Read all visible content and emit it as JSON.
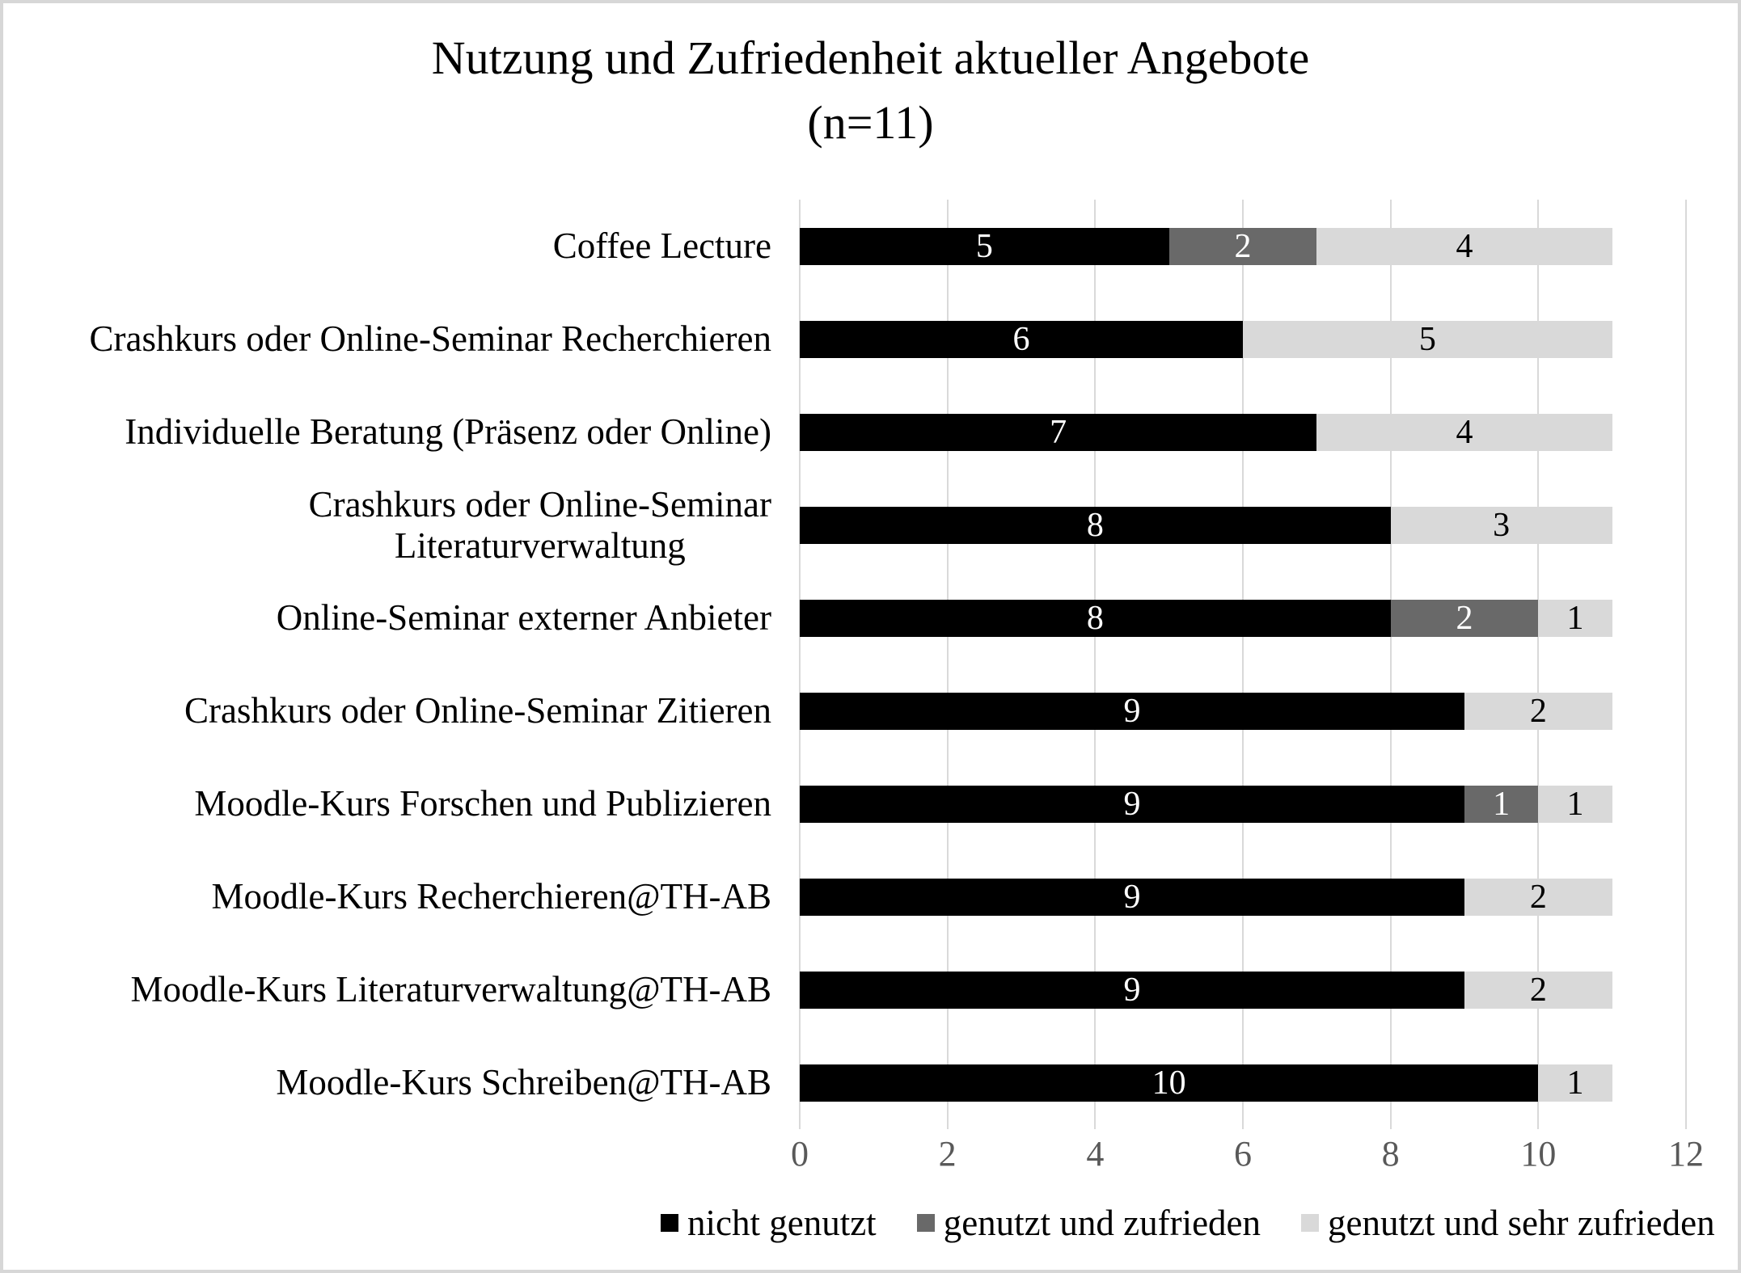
{
  "title": {
    "line1": "Nutzung und Zufriedenheit aktueller Angebote",
    "line2": "(n=11)"
  },
  "chart_data": {
    "type": "bar",
    "orientation": "horizontal",
    "stacked": true,
    "title": "Nutzung und Zufriedenheit aktueller Angebote (n=11)",
    "categories": [
      "Coffee Lecture",
      "Crashkurs oder Online-Seminar Recherchieren",
      "Individuelle Beratung (Präsenz oder Online)",
      "Crashkurs oder Online-Seminar\nLiteraturverwaltung",
      "Online-Seminar externer Anbieter",
      "Crashkurs oder Online-Seminar Zitieren",
      "Moodle-Kurs Forschen und Publizieren",
      "Moodle-Kurs Recherchieren@TH-AB",
      "Moodle-Kurs Literaturverwaltung@TH-AB",
      "Moodle-Kurs Schreiben@TH-AB"
    ],
    "series": [
      {
        "name": "nicht genutzt",
        "color": "#000000",
        "label_color": "#ffffff",
        "values": [
          5,
          6,
          7,
          8,
          8,
          9,
          9,
          9,
          9,
          10
        ]
      },
      {
        "name": "genutzt und zufrieden",
        "color": "#696969",
        "label_color": "#ffffff",
        "values": [
          2,
          0,
          0,
          0,
          2,
          0,
          1,
          0,
          0,
          0
        ]
      },
      {
        "name": "genutzt und sehr zufrieden",
        "color": "#d9d9d9",
        "label_color": "#000000",
        "values": [
          4,
          5,
          4,
          3,
          1,
          2,
          1,
          2,
          2,
          1
        ]
      }
    ],
    "xlim": [
      0,
      12
    ],
    "xticks": [
      0,
      2,
      4,
      6,
      8,
      10,
      12
    ],
    "grid": "vertical",
    "gridline_color": "#d9d9d9",
    "tick_label_color": "#595959",
    "legend_position": "bottom"
  },
  "legend": {
    "items": [
      {
        "label": "nicht genutzt",
        "color": "#000000"
      },
      {
        "label": "genutzt und zufrieden",
        "color": "#696969"
      },
      {
        "label": "genutzt und sehr zufrieden",
        "color": "#d9d9d9"
      }
    ]
  }
}
